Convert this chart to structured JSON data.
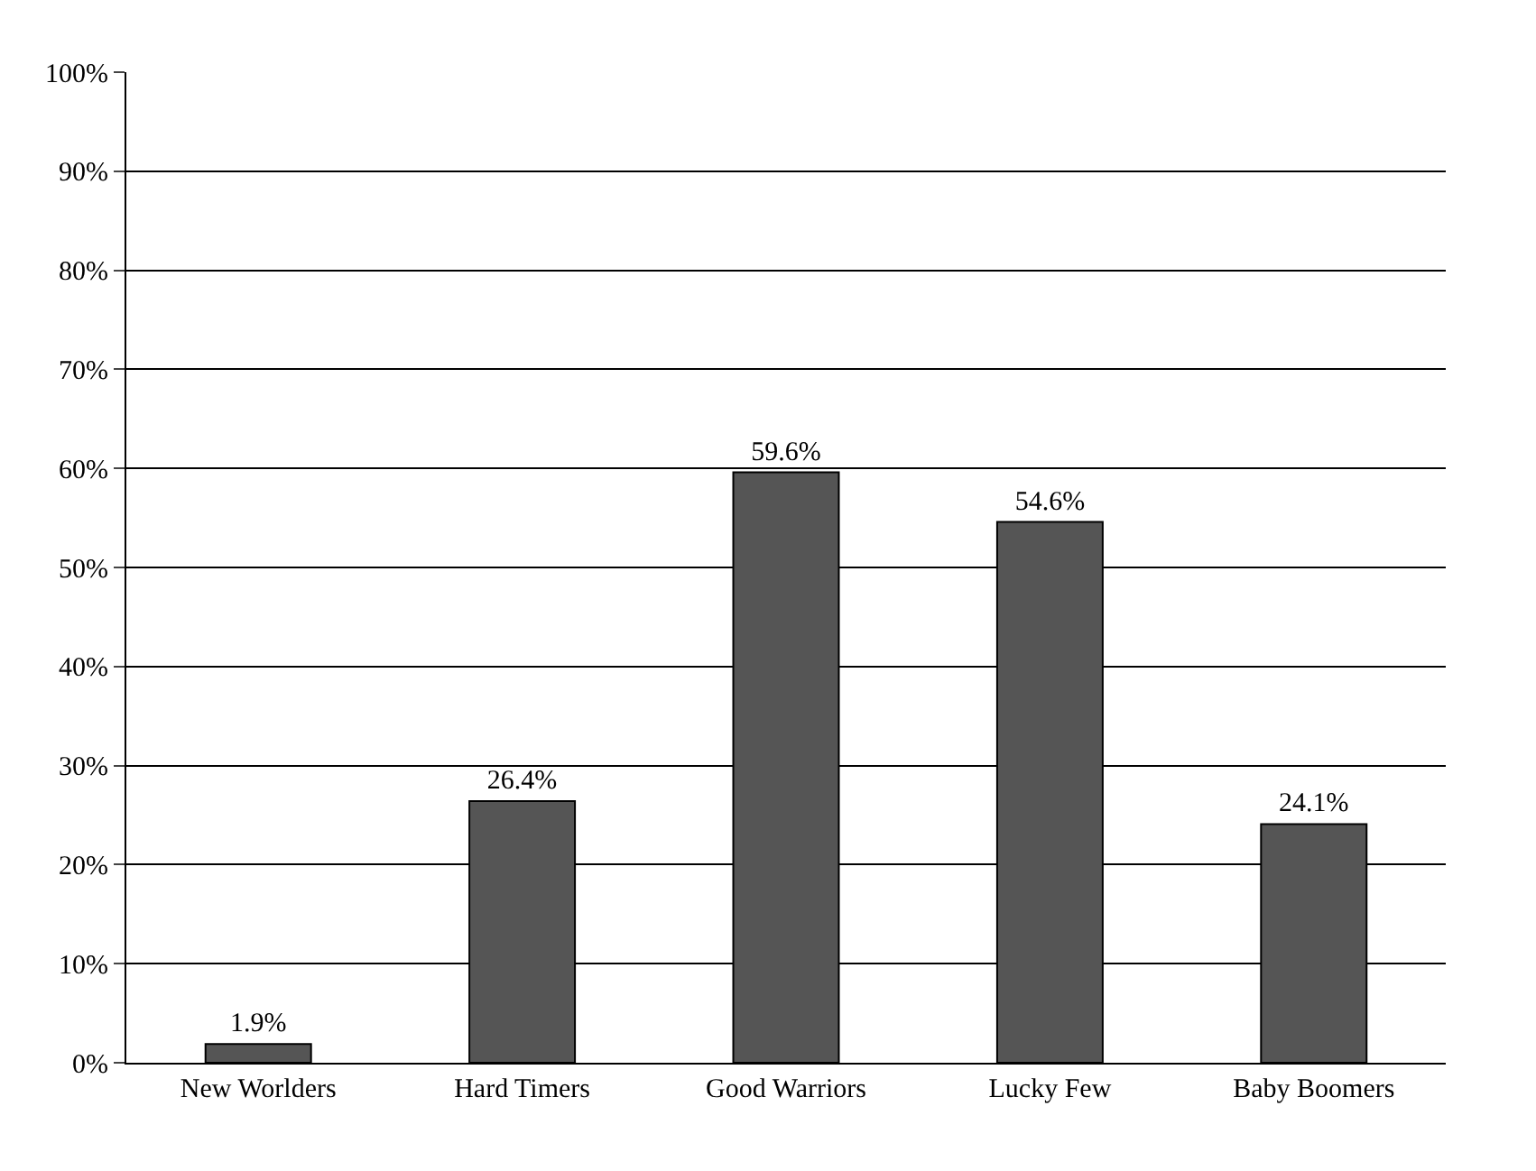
{
  "chart_data": {
    "type": "bar",
    "categories": [
      "New Worlders",
      "Hard Timers",
      "Good Warriors",
      "Lucky Few",
      "Baby Boomers"
    ],
    "values": [
      1.9,
      26.4,
      59.6,
      54.6,
      24.1
    ],
    "value_labels": [
      "1.9%",
      "26.4%",
      "59.6%",
      "54.6%",
      "24.1%"
    ],
    "color": "#555555",
    "ylim": [
      0,
      100
    ],
    "yticks": [
      {
        "value": 0,
        "label": "0%"
      },
      {
        "value": 10,
        "label": "10%"
      },
      {
        "value": 20,
        "label": "20%"
      },
      {
        "value": 30,
        "label": "30%"
      },
      {
        "value": 40,
        "label": "40%"
      },
      {
        "value": 50,
        "label": "50%"
      },
      {
        "value": 60,
        "label": "60%"
      },
      {
        "value": 70,
        "label": "70%"
      },
      {
        "value": 80,
        "label": "80%"
      },
      {
        "value": 90,
        "label": "90%"
      },
      {
        "value": 100,
        "label": "100%"
      }
    ],
    "grid": "y"
  }
}
